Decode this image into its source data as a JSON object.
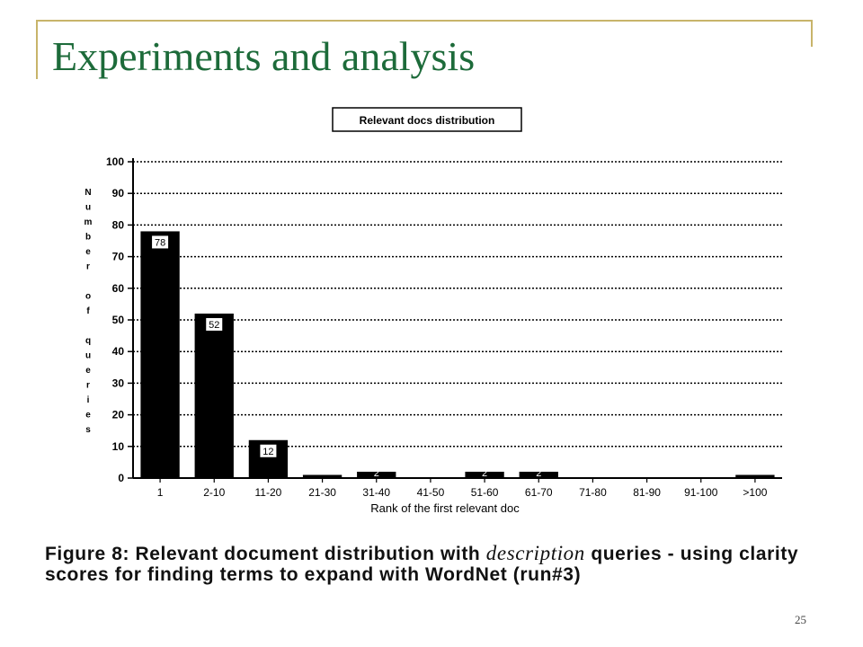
{
  "slide": {
    "title": "Experiments and analysis",
    "page_number": "25"
  },
  "caption": {
    "prefix": "Figure 8:  Relevant document distribution with",
    "italic": "description",
    "suffix": "queries - using clarity scores for finding terms to expand with WordNet (run#3)"
  },
  "chart_data": {
    "type": "bar",
    "title": "Relevant docs distribution",
    "xlabel": "Rank of the first relevant doc",
    "ylabel": "Number of queries",
    "categories": [
      "1",
      "2-10",
      "11-20",
      "21-30",
      "31-40",
      "41-50",
      "51-60",
      "61-70",
      "71-80",
      "81-90",
      "91-100",
      ">100"
    ],
    "values": [
      78,
      52,
      12,
      1,
      2,
      0,
      2,
      2,
      0,
      0,
      0,
      1
    ],
    "data_labels": [
      "78",
      "52",
      "12",
      "",
      "2",
      "",
      "2",
      "2",
      "",
      "",
      "",
      ""
    ],
    "ylim": [
      0,
      100
    ],
    "yticks": [
      0,
      10,
      20,
      30,
      40,
      50,
      60,
      70,
      80,
      90,
      100
    ],
    "grid": true,
    "colors": {
      "bar": "#000000",
      "grid": "#000000"
    }
  }
}
